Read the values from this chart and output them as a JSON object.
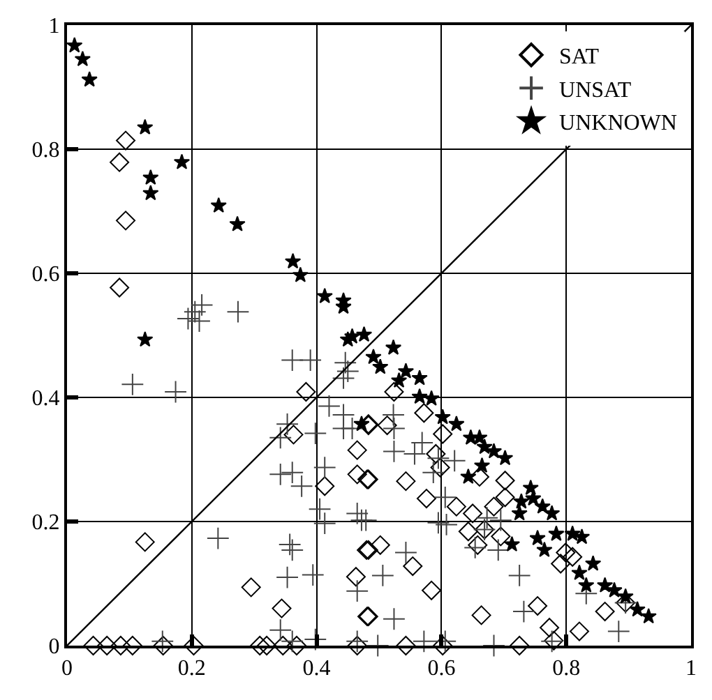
{
  "chart_data": {
    "type": "scatter",
    "xlim": [
      0,
      1
    ],
    "ylim": [
      0,
      1
    ],
    "xticks": [
      0,
      0.2,
      0.4,
      0.6,
      0.8,
      1
    ],
    "yticks": [
      0,
      0.2,
      0.4,
      0.6,
      0.8,
      1
    ],
    "grid": true,
    "legend": "top right",
    "series": [
      {
        "name": "SAT",
        "color": "#000000",
        "marker": "diamond",
        "x": [
          0.094,
          0.084,
          0.094,
          0.084,
          0.383,
          0.363,
          0.413,
          0.125,
          0.295,
          0.344,
          0.465,
          0.465,
          0.481,
          0.48,
          0.463,
          0.481,
          0.483,
          0.042,
          0.064,
          0.086,
          0.105,
          0.154,
          0.203,
          0.309,
          0.32,
          0.346,
          0.368,
          0.465,
          0.524,
          0.483,
          0.513,
          0.572,
          0.602,
          0.591,
          0.598,
          0.483,
          0.543,
          0.576,
          0.661,
          0.702,
          0.624,
          0.65,
          0.702,
          0.684,
          0.643,
          0.669,
          0.695,
          0.658,
          0.483,
          0.502,
          0.554,
          0.584,
          0.483,
          0.664,
          0.754,
          0.773,
          0.821,
          0.799,
          0.81,
          0.791,
          0.862,
          0.895,
          0.78,
          0.543,
          0.602,
          0.725
        ],
        "values": [
          0.814,
          0.779,
          0.685,
          0.577,
          0.409,
          0.34,
          0.257,
          0.167,
          0.094,
          0.06,
          0.315,
          0.276,
          0.268,
          0.154,
          0.111,
          0.047,
          0.357,
          0,
          0,
          0,
          0,
          0,
          0,
          0,
          0,
          0,
          0,
          0,
          0.409,
          0.355,
          0.355,
          0.375,
          0.341,
          0.309,
          0.287,
          0.268,
          0.265,
          0.237,
          0.272,
          0.266,
          0.224,
          0.213,
          0.239,
          0.224,
          0.184,
          0.187,
          0.176,
          0.162,
          0.154,
          0.162,
          0.128,
          0.089,
          0.047,
          0.049,
          0.064,
          0.029,
          0.023,
          0.15,
          0.143,
          0.132,
          0.055,
          0.069,
          0.008,
          0,
          0,
          0
        ]
      },
      {
        "name": "UNSAT",
        "color": "#444444",
        "marker": "cross",
        "x": [
          0.216,
          0.205,
          0.194,
          0.212,
          0.274,
          0.105,
          0.174,
          0.361,
          0.39,
          0.446,
          0.45,
          0.443,
          0.42,
          0.443,
          0.443,
          0.457,
          0.353,
          0.342,
          0.398,
          0.342,
          0.361,
          0.376,
          0.413,
          0.405,
          0.413,
          0.465,
          0.472,
          0.242,
          0.357,
          0.361,
          0.353,
          0.394,
          0.465,
          0.153,
          0.342,
          0.361,
          0.398,
          0.465,
          0.523,
          0.524,
          0.524,
          0.569,
          0.557,
          0.595,
          0.621,
          0.587,
          0.606,
          0.595,
          0.608,
          0.479,
          0.543,
          0.506,
          0.524,
          0.673,
          0.669,
          0.654,
          0.695,
          0.691,
          0.725,
          0.732,
          0.832,
          0.895,
          0.884,
          0.498,
          0.572,
          0.606,
          0.684,
          0.777
        ],
        "values": [
          0.549,
          0.538,
          0.527,
          0.523,
          0.538,
          0.421,
          0.409,
          0.46,
          0.46,
          0.456,
          0.442,
          0.431,
          0.386,
          0.372,
          0.35,
          0.35,
          0.357,
          0.335,
          0.342,
          0.276,
          0.279,
          0.257,
          0.287,
          0.22,
          0.197,
          0.213,
          0.202,
          0.173,
          0.163,
          0.154,
          0.11,
          0.114,
          0.088,
          0.007,
          0.025,
          0.007,
          0.01,
          0.007,
          0.372,
          0.35,
          0.313,
          0.327,
          0.309,
          0.302,
          0.298,
          0.279,
          0.239,
          0.198,
          0.195,
          0.202,
          0.15,
          0.113,
          0.043,
          0.206,
          0.187,
          0.158,
          0.202,
          0.154,
          0.113,
          0.055,
          0.084,
          0.069,
          0.023,
          0,
          0.007,
          0.007,
          0,
          0.007
        ]
      },
      {
        "name": "UNKNOWN",
        "color": "#000000",
        "marker": "star",
        "x": [
          0.012,
          0.025,
          0.036,
          0.125,
          0.184,
          0.134,
          0.134,
          0.243,
          0.273,
          0.362,
          0.374,
          0.413,
          0.443,
          0.443,
          0.125,
          0.45,
          0.457,
          0.472,
          0.476,
          0.523,
          0.491,
          0.502,
          0.543,
          0.565,
          0.532,
          0.565,
          0.584,
          0.602,
          0.624,
          0.647,
          0.661,
          0.669,
          0.684,
          0.702,
          0.643,
          0.665,
          0.743,
          0.728,
          0.747,
          0.762,
          0.777,
          0.725,
          0.754,
          0.765,
          0.784,
          0.81,
          0.825,
          0.713,
          0.843,
          0.821,
          0.832,
          0.862,
          0.877,
          0.895,
          0.914,
          0.932
        ],
        "values": [
          0.967,
          0.945,
          0.912,
          0.835,
          0.779,
          0.754,
          0.729,
          0.709,
          0.679,
          0.619,
          0.597,
          0.563,
          0.556,
          0.546,
          0.493,
          0.493,
          0.498,
          0.357,
          0.501,
          0.48,
          0.465,
          0.449,
          0.442,
          0.431,
          0.427,
          0.401,
          0.398,
          0.368,
          0.357,
          0.335,
          0.335,
          0.32,
          0.313,
          0.302,
          0.272,
          0.29,
          0.254,
          0.232,
          0.237,
          0.224,
          0.213,
          0.213,
          0.173,
          0.154,
          0.18,
          0.18,
          0.175,
          0.163,
          0.132,
          0.117,
          0.097,
          0.097,
          0.089,
          0.079,
          0.058,
          0.047
        ]
      },
      {
        "type": "line",
        "color": "#000000",
        "marker": "none",
        "x": [
          0,
          1
        ],
        "values": [
          0,
          1
        ]
      }
    ]
  }
}
